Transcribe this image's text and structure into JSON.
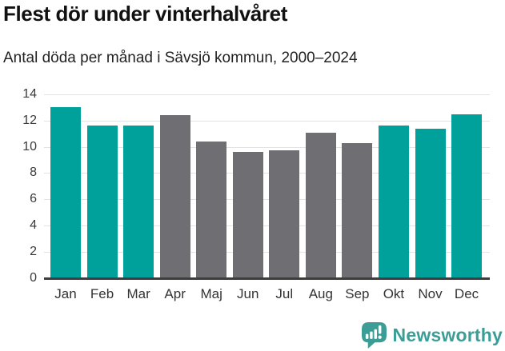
{
  "header": {
    "title": "Flest dör under vinterhalvåret",
    "subtitle": "Antal döda per månad i Sävsjö kommun, 2000–2024"
  },
  "chart_data": {
    "type": "bar",
    "title": "Flest dör under vinterhalvåret",
    "subtitle": "Antal döda per månad i Sävsjö kommun, 2000–2024",
    "categories": [
      "Jan",
      "Feb",
      "Mar",
      "Apr",
      "Maj",
      "Jun",
      "Jul",
      "Aug",
      "Sep",
      "Okt",
      "Nov",
      "Dec"
    ],
    "values": [
      13.0,
      11.6,
      11.6,
      12.4,
      10.4,
      9.6,
      9.7,
      11.1,
      10.3,
      11.6,
      11.4,
      12.5
    ],
    "groups": [
      "winter",
      "winter",
      "winter",
      "summer",
      "summer",
      "summer",
      "summer",
      "summer",
      "summer",
      "winter",
      "winter",
      "winter"
    ],
    "palette": {
      "winter": "#00a19a",
      "summer": "#6e6e73"
    },
    "xlabel": "",
    "ylabel": "",
    "ylim": [
      0,
      14
    ],
    "yticks": [
      0,
      2,
      4,
      6,
      8,
      10,
      12,
      14
    ],
    "grid": true,
    "legend": false,
    "colors": {
      "grid": "#e3e3e3",
      "axis": "#3d3d3d",
      "tick_text": "#3a3a3a"
    }
  },
  "footer": {
    "brand": "Newsworthy",
    "brand_color": "#3b9e96",
    "logo_icon": "newsworthy-bar-chart-bubble"
  }
}
